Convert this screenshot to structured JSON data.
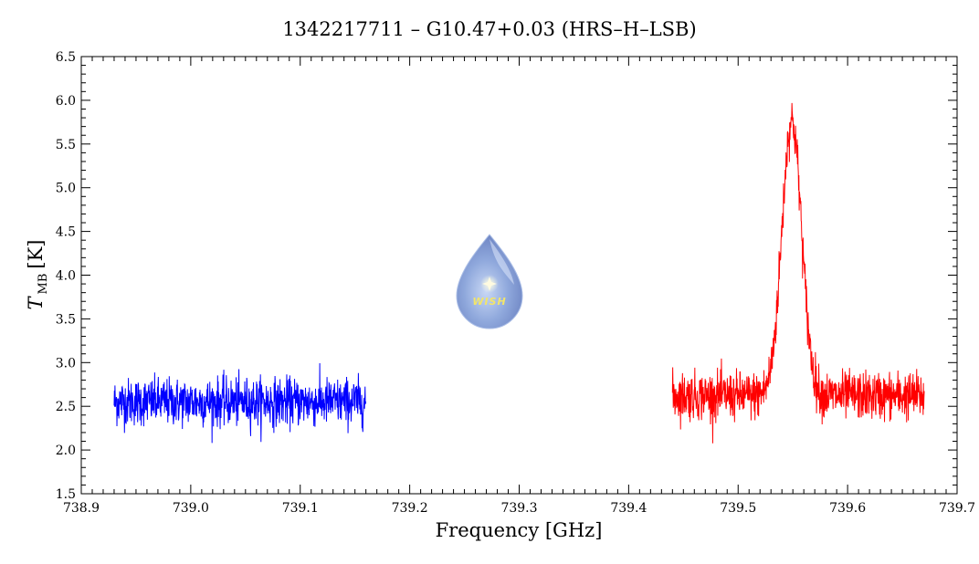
{
  "chart_data": {
    "type": "line",
    "title": "1342217711 – G10.47+0.03 (HRS–H–LSB)",
    "xlabel": "Frequency [GHz]",
    "ylabel_main": "T",
    "ylabel_sub": "MB",
    "ylabel_unit": "[K]",
    "xlim": [
      738.9,
      739.7
    ],
    "ylim": [
      1.5,
      6.5
    ],
    "xticks": [
      "738.9",
      "739.0",
      "739.1",
      "739.2",
      "739.3",
      "739.4",
      "739.5",
      "739.6",
      "739.7"
    ],
    "yticks": [
      "1.5",
      "2.0",
      "2.5",
      "3.0",
      "3.5",
      "4.0",
      "4.5",
      "5.0",
      "5.5",
      "6.0",
      "6.5"
    ],
    "grid": false,
    "series": [
      {
        "color": "#0000ff",
        "x_range": [
          738.93,
          739.16
        ],
        "baseline": 2.55,
        "noise_amplitude": 0.3,
        "peak": null
      },
      {
        "color": "#ff0000",
        "x_range": [
          739.44,
          739.67
        ],
        "baseline": 2.62,
        "noise_amplitude": 0.3,
        "peak": {
          "center": 739.549,
          "height": 3.15,
          "width": 0.009
        }
      }
    ]
  },
  "logo": {
    "text": "WISH",
    "icon": "water-drop-icon"
  }
}
